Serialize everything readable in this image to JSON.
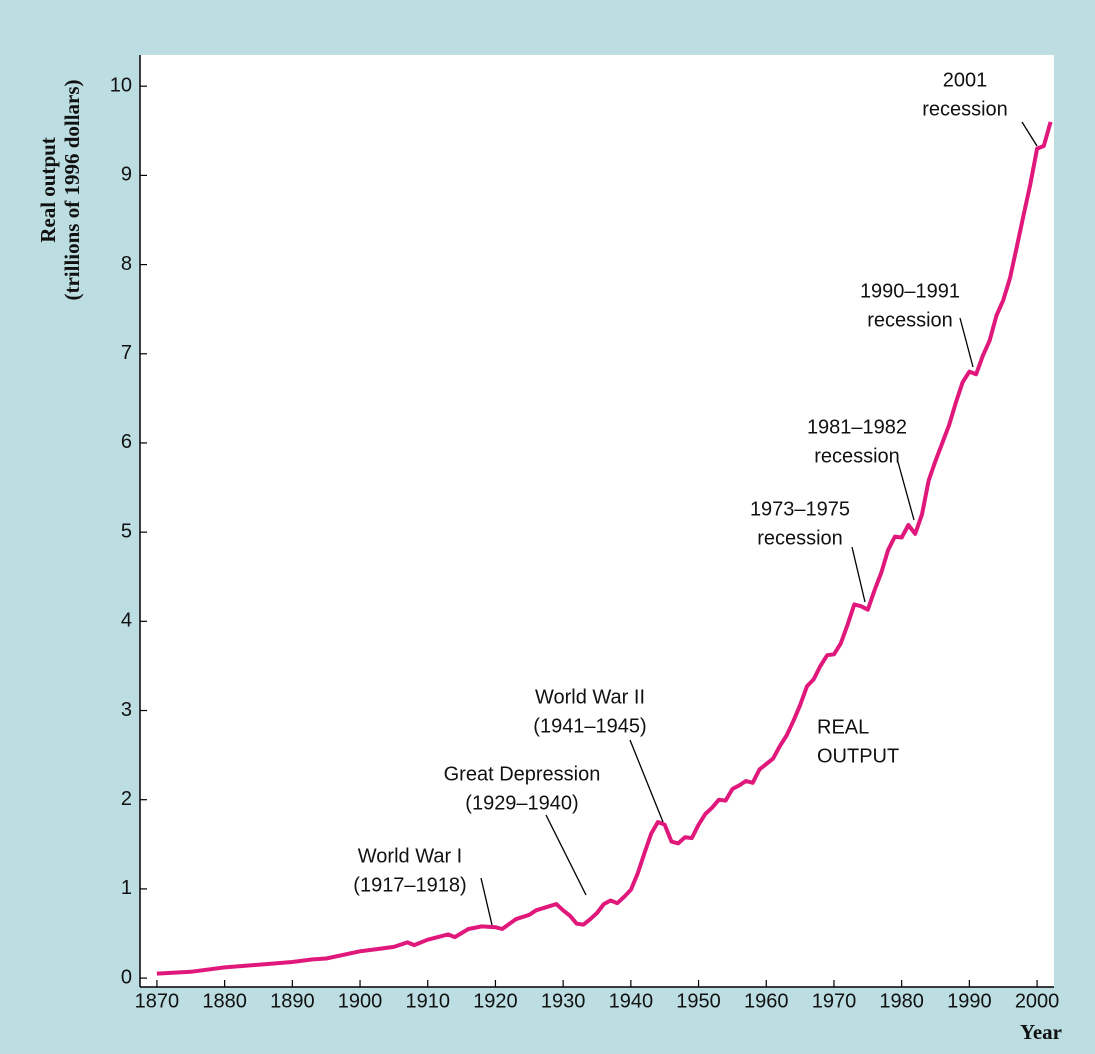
{
  "chart_data": {
    "type": "line",
    "y_label": [
      "Real output",
      "(trillions of 1996 dollars)"
    ],
    "x_label": "Year",
    "color": "#e0187c",
    "x": [
      1870,
      1875,
      1880,
      1885,
      1890,
      1893,
      1895,
      1900,
      1905,
      1907,
      1908,
      1910,
      1913,
      1914,
      1916,
      1918,
      1920,
      1921,
      1923,
      1925,
      1926,
      1929,
      1930,
      1931,
      1932,
      1933,
      1934,
      1935,
      1936,
      1937,
      1938,
      1939,
      1940,
      1941,
      1942,
      1943,
      1944,
      1945,
      1946,
      1947,
      1948,
      1949,
      1950,
      1951,
      1952,
      1953,
      1954,
      1955,
      1956,
      1957,
      1958,
      1959,
      1960,
      1961,
      1962,
      1963,
      1964,
      1965,
      1966,
      1967,
      1968,
      1969,
      1970,
      1971,
      1972,
      1973,
      1974,
      1975,
      1976,
      1977,
      1978,
      1979,
      1980,
      1981,
      1982,
      1983,
      1984,
      1985,
      1986,
      1987,
      1988,
      1989,
      1990,
      1991,
      1992,
      1993,
      1994,
      1995,
      1996,
      1997,
      1998,
      1999,
      2000,
      2001,
      2002
    ],
    "values": [
      0.05,
      0.07,
      0.12,
      0.15,
      0.18,
      0.21,
      0.22,
      0.3,
      0.35,
      0.4,
      0.37,
      0.43,
      0.49,
      0.46,
      0.55,
      0.58,
      0.57,
      0.55,
      0.66,
      0.71,
      0.76,
      0.83,
      0.76,
      0.7,
      0.61,
      0.6,
      0.66,
      0.73,
      0.83,
      0.87,
      0.84,
      0.91,
      0.99,
      1.17,
      1.4,
      1.62,
      1.75,
      1.72,
      1.53,
      1.51,
      1.58,
      1.57,
      1.72,
      1.84,
      1.91,
      2.0,
      1.99,
      2.12,
      2.16,
      2.21,
      2.19,
      2.34,
      2.4,
      2.46,
      2.6,
      2.72,
      2.88,
      3.06,
      3.27,
      3.35,
      3.5,
      3.62,
      3.63,
      3.75,
      3.96,
      4.19,
      4.17,
      4.13,
      4.35,
      4.55,
      4.8,
      4.95,
      4.94,
      5.08,
      4.98,
      5.2,
      5.58,
      5.8,
      6.0,
      6.2,
      6.45,
      6.68,
      6.8,
      6.77,
      6.98,
      7.15,
      7.43,
      7.6,
      7.85,
      8.2,
      8.55,
      8.9,
      9.3,
      9.33,
      9.6
    ],
    "xlim": [
      1867.5,
      2002.5
    ],
    "ylim": [
      -0.1,
      10.35
    ],
    "xticks": [
      1870,
      1880,
      1890,
      1900,
      1910,
      1920,
      1930,
      1940,
      1950,
      1960,
      1970,
      1980,
      1990,
      2000
    ],
    "yticks": [
      0,
      1,
      2,
      3,
      4,
      5,
      6,
      7,
      8,
      9,
      10
    ],
    "annotations": [
      {
        "text": [
          "2001",
          "recession"
        ]
      },
      {
        "text": [
          "1990–1991",
          "recession"
        ]
      },
      {
        "text": [
          "1981–1982",
          "recession"
        ]
      },
      {
        "text": [
          "1973–1975",
          "recession"
        ]
      },
      {
        "text": [
          "World War II",
          "(1941–1945)"
        ]
      },
      {
        "text": [
          "Great Depression",
          "(1929–1940)"
        ]
      },
      {
        "text": [
          "World War I",
          "(1917–1918)"
        ]
      },
      {
        "text": [
          "REAL",
          "OUTPUT"
        ]
      }
    ]
  }
}
